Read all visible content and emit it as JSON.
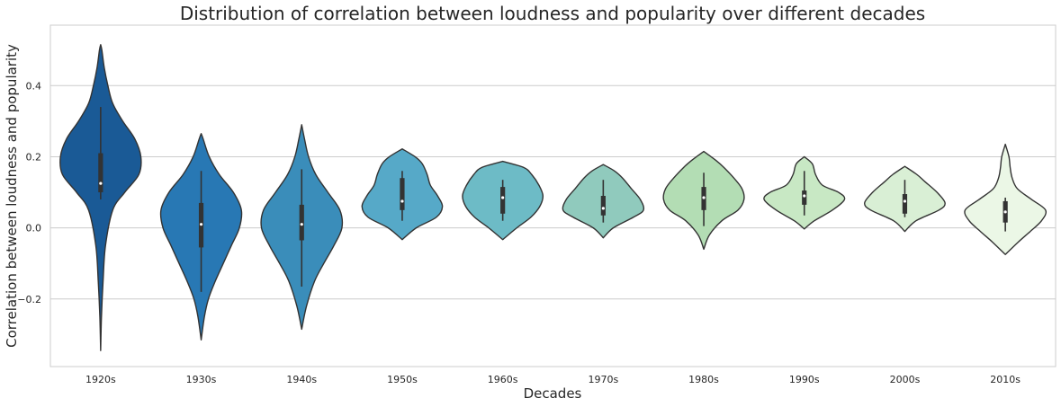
{
  "chart_data": {
    "type": "violin",
    "title": "Distribution of correlation between loudness and popularity over different decades",
    "xlabel": "Decades",
    "ylabel": "Correlation between loudness and popularity",
    "categories": [
      "1920s",
      "1930s",
      "1940s",
      "1950s",
      "1960s",
      "1970s",
      "1980s",
      "1990s",
      "2000s",
      "2010s"
    ],
    "yticks": [
      -0.2,
      0.0,
      0.2,
      0.4
    ],
    "ytick_labels": [
      "−0.2",
      "0.0",
      "0.2",
      "0.4"
    ],
    "ylim": [
      -0.39,
      0.57
    ],
    "grid": "horizontal",
    "palette": [
      "#1a5a96",
      "#2878b4",
      "#3a8dba",
      "#56a9c8",
      "#6dbbc6",
      "#90cabd",
      "#b3ddb4",
      "#c8e8c4",
      "#d9efd5",
      "#ebf7e6"
    ],
    "violins": [
      {
        "name": "1920s",
        "min": -0.345,
        "max": 0.515,
        "q1": 0.1,
        "median": 0.125,
        "q3": 0.21,
        "whisker_low": 0.08,
        "whisker_high": 0.34,
        "profile": [
          [
            -0.345,
            0.0
          ],
          [
            -0.25,
            0.02
          ],
          [
            -0.15,
            0.06
          ],
          [
            -0.05,
            0.12
          ],
          [
            0.05,
            0.3
          ],
          [
            0.1,
            0.6
          ],
          [
            0.15,
            0.95
          ],
          [
            0.2,
            1.0
          ],
          [
            0.25,
            0.85
          ],
          [
            0.3,
            0.55
          ],
          [
            0.35,
            0.3
          ],
          [
            0.4,
            0.18
          ],
          [
            0.45,
            0.09
          ],
          [
            0.5,
            0.03
          ],
          [
            0.515,
            0.0
          ]
        ]
      },
      {
        "name": "1930s",
        "min": -0.315,
        "max": 0.265,
        "q1": -0.055,
        "median": 0.01,
        "q3": 0.07,
        "whisker_low": -0.18,
        "whisker_high": 0.16,
        "profile": [
          [
            -0.315,
            0.0
          ],
          [
            -0.25,
            0.08
          ],
          [
            -0.2,
            0.18
          ],
          [
            -0.15,
            0.35
          ],
          [
            -0.1,
            0.55
          ],
          [
            -0.05,
            0.75
          ],
          [
            0.0,
            0.95
          ],
          [
            0.05,
            1.0
          ],
          [
            0.1,
            0.8
          ],
          [
            0.15,
            0.45
          ],
          [
            0.2,
            0.2
          ],
          [
            0.25,
            0.05
          ],
          [
            0.265,
            0.0
          ]
        ]
      },
      {
        "name": "1940s",
        "min": -0.285,
        "max": 0.29,
        "q1": -0.035,
        "median": 0.01,
        "q3": 0.065,
        "whisker_low": -0.165,
        "whisker_high": 0.165,
        "profile": [
          [
            -0.285,
            0.0
          ],
          [
            -0.22,
            0.12
          ],
          [
            -0.15,
            0.32
          ],
          [
            -0.1,
            0.55
          ],
          [
            -0.05,
            0.8
          ],
          [
            0.0,
            1.0
          ],
          [
            0.05,
            0.95
          ],
          [
            0.1,
            0.65
          ],
          [
            0.15,
            0.35
          ],
          [
            0.2,
            0.17
          ],
          [
            0.25,
            0.07
          ],
          [
            0.29,
            0.0
          ]
        ]
      },
      {
        "name": "1950s",
        "min": -0.033,
        "max": 0.222,
        "q1": 0.05,
        "median": 0.075,
        "q3": 0.14,
        "whisker_low": 0.02,
        "whisker_high": 0.16,
        "profile": [
          [
            -0.033,
            0.0
          ],
          [
            0.0,
            0.35
          ],
          [
            0.03,
            0.85
          ],
          [
            0.06,
            1.0
          ],
          [
            0.09,
            0.88
          ],
          [
            0.12,
            0.7
          ],
          [
            0.15,
            0.62
          ],
          [
            0.18,
            0.5
          ],
          [
            0.2,
            0.32
          ],
          [
            0.222,
            0.0
          ]
        ]
      },
      {
        "name": "1960s",
        "min": -0.033,
        "max": 0.187,
        "q1": 0.04,
        "median": 0.085,
        "q3": 0.115,
        "whisker_low": 0.02,
        "whisker_high": 0.135,
        "profile": [
          [
            -0.033,
            0.0
          ],
          [
            0.0,
            0.35
          ],
          [
            0.03,
            0.7
          ],
          [
            0.06,
            0.92
          ],
          [
            0.09,
            1.0
          ],
          [
            0.12,
            0.9
          ],
          [
            0.15,
            0.72
          ],
          [
            0.17,
            0.52
          ],
          [
            0.187,
            0.0
          ]
        ]
      },
      {
        "name": "1970s",
        "min": -0.028,
        "max": 0.178,
        "q1": 0.035,
        "median": 0.055,
        "q3": 0.09,
        "whisker_low": 0.015,
        "whisker_high": 0.135,
        "profile": [
          [
            -0.028,
            0.0
          ],
          [
            0.0,
            0.25
          ],
          [
            0.03,
            0.75
          ],
          [
            0.05,
            1.0
          ],
          [
            0.08,
            0.92
          ],
          [
            0.11,
            0.7
          ],
          [
            0.14,
            0.48
          ],
          [
            0.16,
            0.28
          ],
          [
            0.178,
            0.0
          ]
        ]
      },
      {
        "name": "1980s",
        "min": -0.06,
        "max": 0.215,
        "q1": 0.05,
        "median": 0.085,
        "q3": 0.115,
        "whisker_low": 0.005,
        "whisker_high": 0.155,
        "profile": [
          [
            -0.06,
            0.0
          ],
          [
            -0.02,
            0.14
          ],
          [
            0.02,
            0.45
          ],
          [
            0.05,
            0.85
          ],
          [
            0.08,
            1.0
          ],
          [
            0.11,
            0.95
          ],
          [
            0.14,
            0.75
          ],
          [
            0.17,
            0.5
          ],
          [
            0.19,
            0.3
          ],
          [
            0.215,
            0.0
          ]
        ]
      },
      {
        "name": "1990s",
        "min": -0.003,
        "max": 0.2,
        "q1": 0.065,
        "median": 0.09,
        "q3": 0.105,
        "whisker_low": 0.035,
        "whisker_high": 0.16,
        "profile": [
          [
            -0.003,
            0.0
          ],
          [
            0.02,
            0.25
          ],
          [
            0.05,
            0.7
          ],
          [
            0.08,
            1.0
          ],
          [
            0.1,
            0.85
          ],
          [
            0.12,
            0.45
          ],
          [
            0.15,
            0.28
          ],
          [
            0.18,
            0.2
          ],
          [
            0.2,
            0.0
          ]
        ]
      },
      {
        "name": "2000s",
        "min": -0.01,
        "max": 0.173,
        "q1": 0.04,
        "median": 0.075,
        "q3": 0.095,
        "whisker_low": 0.03,
        "whisker_high": 0.135,
        "profile": [
          [
            -0.01,
            0.0
          ],
          [
            0.02,
            0.28
          ],
          [
            0.05,
            0.85
          ],
          [
            0.07,
            1.0
          ],
          [
            0.1,
            0.8
          ],
          [
            0.13,
            0.5
          ],
          [
            0.15,
            0.3
          ],
          [
            0.173,
            0.0
          ]
        ]
      },
      {
        "name": "2010s",
        "min": -0.075,
        "max": 0.235,
        "q1": 0.015,
        "median": 0.045,
        "q3": 0.075,
        "whisker_low": -0.01,
        "whisker_high": 0.085,
        "profile": [
          [
            -0.075,
            0.0
          ],
          [
            -0.04,
            0.32
          ],
          [
            -0.01,
            0.62
          ],
          [
            0.02,
            0.9
          ],
          [
            0.05,
            1.0
          ],
          [
            0.08,
            0.65
          ],
          [
            0.11,
            0.3
          ],
          [
            0.14,
            0.17
          ],
          [
            0.17,
            0.12
          ],
          [
            0.2,
            0.09
          ],
          [
            0.235,
            0.0
          ]
        ]
      }
    ]
  }
}
